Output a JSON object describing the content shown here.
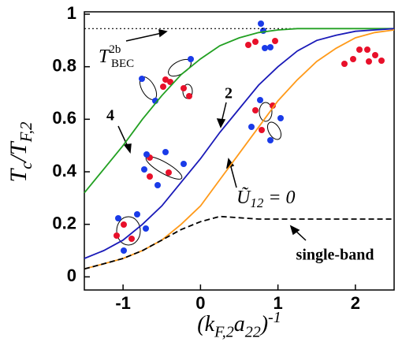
{
  "chart_data": {
    "type": "line",
    "x_label": [
      "(k",
      "F,2",
      "a",
      "22",
      ")",
      "-1"
    ],
    "y_label": [
      "T",
      "c",
      "/T",
      "F,2"
    ],
    "x": [
      -1.5,
      -1.25,
      -1,
      -0.75,
      -0.5,
      -0.25,
      0,
      0.25,
      0.5,
      0.75,
      1,
      1.25,
      1.5,
      1.75,
      2,
      2.25,
      2.5
    ],
    "series": [
      {
        "color": "#22a022",
        "dash": "solid",
        "values": [
          0.32,
          0.41,
          0.5,
          0.6,
          0.69,
          0.77,
          0.83,
          0.88,
          0.91,
          0.93,
          0.94,
          0.945,
          0.945,
          0.945,
          0.945,
          0.945,
          0.945
        ]
      },
      {
        "color": "#1a1ab8",
        "dash": "solid",
        "values": [
          0.07,
          0.1,
          0.14,
          0.2,
          0.27,
          0.36,
          0.45,
          0.55,
          0.64,
          0.73,
          0.8,
          0.86,
          0.9,
          0.92,
          0.935,
          0.94,
          0.945
        ]
      },
      {
        "color": "#ff9a1a",
        "dash": "solid",
        "values": [
          0.03,
          0.05,
          0.07,
          0.1,
          0.14,
          0.2,
          0.27,
          0.37,
          0.47,
          0.57,
          0.67,
          0.75,
          0.82,
          0.87,
          0.91,
          0.93,
          0.94
        ]
      },
      {
        "color": "#000000",
        "dash": "dashed",
        "values": [
          0.03,
          0.05,
          0.07,
          0.1,
          0.14,
          0.18,
          0.21,
          0.23,
          0.225,
          0.22,
          0.22,
          0.22,
          0.22,
          0.22,
          0.22,
          0.22,
          0.22
        ]
      }
    ],
    "reference_line": {
      "value": 0.945,
      "color": "#000000",
      "dash": "dotted"
    },
    "annotations": {
      "bec": [
        "T",
        "2b",
        "BEC"
      ],
      "four": "4",
      "two": "2",
      "u12": [
        "Ũ",
        "12",
        " = 0"
      ],
      "single_band": "single-band"
    },
    "xlim": [
      -1.5,
      2.5
    ],
    "ylim": [
      -0.05,
      1.0
    ],
    "xticks": [
      -1,
      0,
      1,
      2
    ],
    "yticks": [
      0,
      0.2,
      0.4,
      0.6,
      0.8,
      1
    ]
  }
}
